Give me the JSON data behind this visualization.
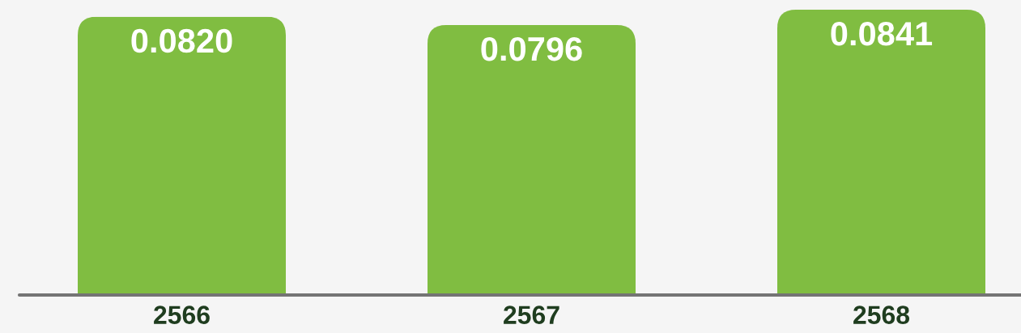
{
  "chart_data": {
    "type": "bar",
    "categories": [
      "2566",
      "2567",
      "2568"
    ],
    "values": [
      0.082,
      0.0796,
      0.0841
    ],
    "value_labels": [
      "0.0820",
      "0.0796",
      "0.0841"
    ],
    "color": "#80bd41",
    "tick_labels": "x"
  }
}
